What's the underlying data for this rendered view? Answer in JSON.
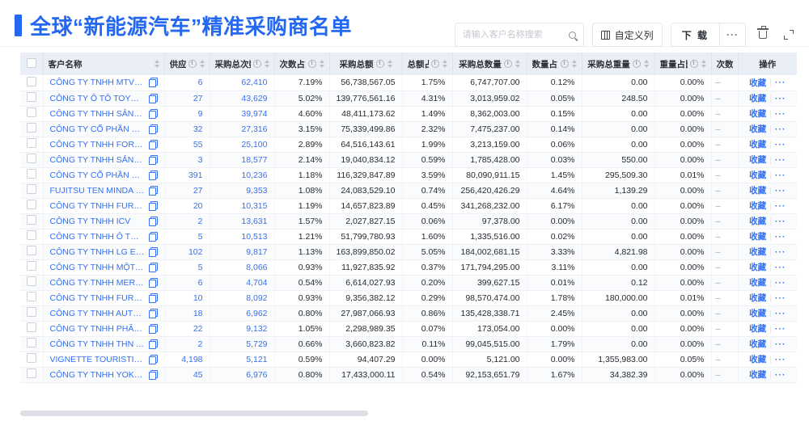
{
  "page": {
    "title": "全球“新能源汽车”精准采购商名单"
  },
  "toolbar": {
    "search_placeholder": "请输入客户名称搜索",
    "customize_columns_label": "自定义列",
    "download_label": "下 载",
    "download_more_label": "···"
  },
  "icons": {
    "search": "search-icon",
    "columns": "columns-grid-icon",
    "trash": "trash-icon",
    "expand": "fullscreen-expand-icon",
    "copy": "copy-icon",
    "info": "i",
    "sort": "sort-carets"
  },
  "table": {
    "columns": [
      {
        "label": "客户名称",
        "info": false,
        "sortable": true
      },
      {
        "label": "供应商",
        "info": true,
        "sortable": true
      },
      {
        "label": "采购总次数",
        "info": true,
        "sortable": true
      },
      {
        "label": "次数占比",
        "info": true,
        "sortable": true
      },
      {
        "label": "采购总额",
        "info": true,
        "sortable": true
      },
      {
        "label": "总额占比",
        "info": true,
        "sortable": true
      },
      {
        "label": "采购总数量",
        "info": true,
        "sortable": true
      },
      {
        "label": "数量占比",
        "info": true,
        "sortable": true
      },
      {
        "label": "采购总重量",
        "info": true,
        "sortable": true
      },
      {
        "label": "重量占比",
        "info": true,
        "sortable": true
      },
      {
        "label": "次数趋势",
        "info": false,
        "sortable": false
      },
      {
        "label": "操作",
        "info": false,
        "sortable": false
      }
    ],
    "favorite_label": "收藏",
    "row_more_label": "···",
    "rows": [
      {
        "name": "CÔNG TY TNHH MTV SẢN XUẤ...",
        "supplier": "6",
        "times": "62,410",
        "times_pct": "7.19%",
        "amount": "56,738,567.05",
        "amount_pct": "1.75%",
        "qty": "6,747,707.00",
        "qty_pct": "0.12%",
        "weight": "0.00",
        "weight_pct": "0.00%",
        "trend": "–"
      },
      {
        "name": "CÔNG TY Ô TÔ TOYOTA VIỆT ...",
        "supplier": "27",
        "times": "43,629",
        "times_pct": "5.02%",
        "amount": "139,776,561.16",
        "amount_pct": "4.31%",
        "qty": "3,013,959.02",
        "qty_pct": "0.05%",
        "weight": "248.50",
        "weight_pct": "0.00%",
        "trend": "–"
      },
      {
        "name": "CÔNG TY TNHH SẢN XUẤT VÀ ...",
        "supplier": "9",
        "times": "39,974",
        "times_pct": "4.60%",
        "amount": "48,411,173.62",
        "amount_pct": "1.49%",
        "qty": "8,362,003.00",
        "qty_pct": "0.15%",
        "weight": "0.00",
        "weight_pct": "0.00%",
        "trend": "–"
      },
      {
        "name": "CÔNG TY CỔ PHẦN SẢN XUẤT...",
        "supplier": "32",
        "times": "27,316",
        "times_pct": "3.15%",
        "amount": "75,339,499.86",
        "amount_pct": "2.32%",
        "qty": "7,475,237.00",
        "qty_pct": "0.14%",
        "weight": "0.00",
        "weight_pct": "0.00%",
        "trend": "–"
      },
      {
        "name": "CÔNG TY TNHH FORD VIỆT NAM",
        "supplier": "55",
        "times": "25,100",
        "times_pct": "2.89%",
        "amount": "64,516,143.61",
        "amount_pct": "1.99%",
        "qty": "3,213,159.00",
        "qty_pct": "0.06%",
        "weight": "0.00",
        "weight_pct": "0.00%",
        "trend": "–"
      },
      {
        "name": "CÔNG TY TNHH SẢN XUẤT VÀ ...",
        "supplier": "3",
        "times": "18,577",
        "times_pct": "2.14%",
        "amount": "19,040,834.12",
        "amount_pct": "0.59%",
        "qty": "1,785,428.00",
        "qty_pct": "0.03%",
        "weight": "550.00",
        "weight_pct": "0.00%",
        "trend": "–"
      },
      {
        "name": "CÔNG TY CỔ PHẦN SẢN XUẤT...",
        "supplier": "391",
        "times": "10,236",
        "times_pct": "1.18%",
        "amount": "116,329,847.89",
        "amount_pct": "3.59%",
        "qty": "80,090,911.15",
        "qty_pct": "1.45%",
        "weight": "295,509.30",
        "weight_pct": "0.01%",
        "trend": "–"
      },
      {
        "name": "FUJITSU TEN MINDA INDIA PVT...",
        "supplier": "27",
        "times": "9,353",
        "times_pct": "1.08%",
        "amount": "24,083,529.10",
        "amount_pct": "0.74%",
        "qty": "256,420,426.29",
        "qty_pct": "4.64%",
        "weight": "1,139.29",
        "weight_pct": "0.00%",
        "trend": "–"
      },
      {
        "name": "CÔNG TY TNHH FURUKAWA A...",
        "supplier": "20",
        "times": "10,315",
        "times_pct": "1.19%",
        "amount": "14,657,823.89",
        "amount_pct": "0.45%",
        "qty": "341,268,232.00",
        "qty_pct": "6.17%",
        "weight": "0.00",
        "weight_pct": "0.00%",
        "trend": "–"
      },
      {
        "name": "CÔNG TY TNHH ICV",
        "supplier": "2",
        "times": "13,631",
        "times_pct": "1.57%",
        "amount": "2,027,827.15",
        "amount_pct": "0.06%",
        "qty": "97,378.00",
        "qty_pct": "0.00%",
        "weight": "0.00",
        "weight_pct": "0.00%",
        "trend": "–"
      },
      {
        "name": "CÔNG TY TNHH Ô TÔ MITSUBI...",
        "supplier": "5",
        "times": "10,513",
        "times_pct": "1.21%",
        "amount": "51,799,780.93",
        "amount_pct": "1.60%",
        "qty": "1,335,516.00",
        "qty_pct": "0.02%",
        "weight": "0.00",
        "weight_pct": "0.00%",
        "trend": "–"
      },
      {
        "name": "CÔNG TY TNHH LG ELECTRON...",
        "supplier": "102",
        "times": "9,817",
        "times_pct": "1.13%",
        "amount": "163,899,850.02",
        "amount_pct": "5.05%",
        "qty": "184,002,681.15",
        "qty_pct": "3.33%",
        "weight": "4,821.98",
        "weight_pct": "0.00%",
        "trend": "–"
      },
      {
        "name": "CÔNG TY TNHH MỘT THÀNH V...",
        "supplier": "5",
        "times": "8,066",
        "times_pct": "0.93%",
        "amount": "11,927,835.92",
        "amount_pct": "0.37%",
        "qty": "171,794,295.00",
        "qty_pct": "3.11%",
        "weight": "0.00",
        "weight_pct": "0.00%",
        "trend": "–"
      },
      {
        "name": "CÔNG TY TNHH MERCEDES–B...",
        "supplier": "6",
        "times": "4,704",
        "times_pct": "0.54%",
        "amount": "6,614,027.93",
        "amount_pct": "0.20%",
        "qty": "399,627.15",
        "qty_pct": "0.01%",
        "weight": "0.12",
        "weight_pct": "0.00%",
        "trend": "–"
      },
      {
        "name": "CÔNG TY TNHH FURUKAWA A...",
        "supplier": "10",
        "times": "8,092",
        "times_pct": "0.93%",
        "amount": "9,356,382.12",
        "amount_pct": "0.29%",
        "qty": "98,570,474.00",
        "qty_pct": "1.78%",
        "weight": "180,000.00",
        "weight_pct": "0.01%",
        "trend": "–"
      },
      {
        "name": "CÔNG TY TNHH AUTEL VIỆT N...",
        "supplier": "18",
        "times": "6,962",
        "times_pct": "0.80%",
        "amount": "27,987,066.93",
        "amount_pct": "0.86%",
        "qty": "135,428,338.71",
        "qty_pct": "2.45%",
        "weight": "0.00",
        "weight_pct": "0.00%",
        "trend": "–"
      },
      {
        "name": "CÔNG TY TNHH PHÂN PHỐI T...",
        "supplier": "22",
        "times": "9,132",
        "times_pct": "1.05%",
        "amount": "2,298,989.35",
        "amount_pct": "0.07%",
        "qty": "173,054.00",
        "qty_pct": "0.00%",
        "weight": "0.00",
        "weight_pct": "0.00%",
        "trend": "–"
      },
      {
        "name": "CÔNG TY TNHH THN AUTOPAR...",
        "supplier": "2",
        "times": "5,729",
        "times_pct": "0.66%",
        "amount": "3,660,823.82",
        "amount_pct": "0.11%",
        "qty": "99,045,515.00",
        "qty_pct": "1.79%",
        "weight": "0.00",
        "weight_pct": "0.00%",
        "trend": "–"
      },
      {
        "name": "VIGNETTE TOURISTIQUE G UNI...",
        "supplier": "4,198",
        "times": "5,121",
        "times_pct": "0.59%",
        "amount": "94,407.29",
        "amount_pct": "0.00%",
        "qty": "5,121.00",
        "qty_pct": "0.00%",
        "weight": "1,355,983.00",
        "weight_pct": "0.05%",
        "trend": "–"
      },
      {
        "name": "CÔNG TY TNHH YOKOWO VIỆT...",
        "supplier": "45",
        "times": "6,976",
        "times_pct": "0.80%",
        "amount": "17,433,000.11",
        "amount_pct": "0.54%",
        "qty": "92,153,651.79",
        "qty_pct": "1.67%",
        "weight": "34,382.39",
        "weight_pct": "0.00%",
        "trend": "–"
      }
    ]
  },
  "colors": {
    "accent": "#2468F2",
    "link": "#3370F4",
    "header_bg": "#EAEEF6",
    "text": "#262A30",
    "muted": "#9AA0A8",
    "border": "#F0F1F4"
  }
}
